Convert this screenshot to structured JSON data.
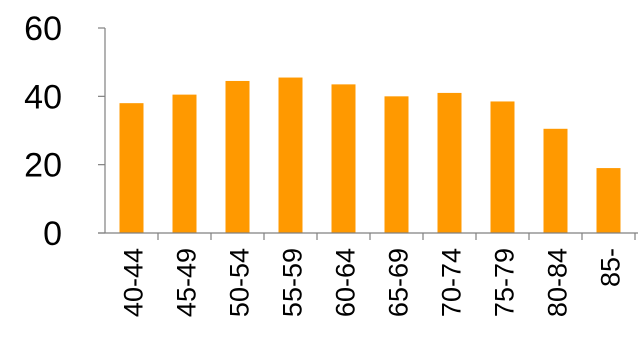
{
  "chart_data": {
    "type": "bar",
    "categories": [
      "40-44",
      "45-49",
      "50-54",
      "55-59",
      "60-64",
      "65-69",
      "70-74",
      "75-79",
      "80-84",
      "85-"
    ],
    "values": [
      38,
      40.5,
      44.5,
      45.5,
      43.5,
      40,
      41,
      38.5,
      30.5,
      19
    ],
    "title": "",
    "xlabel": "",
    "ylabel": "",
    "ylim": [
      0,
      60
    ],
    "yticks": [
      0,
      20,
      40,
      60
    ],
    "grid": false,
    "legend": "none",
    "bar_color": "#FF9900",
    "axis_color": "#808080"
  }
}
